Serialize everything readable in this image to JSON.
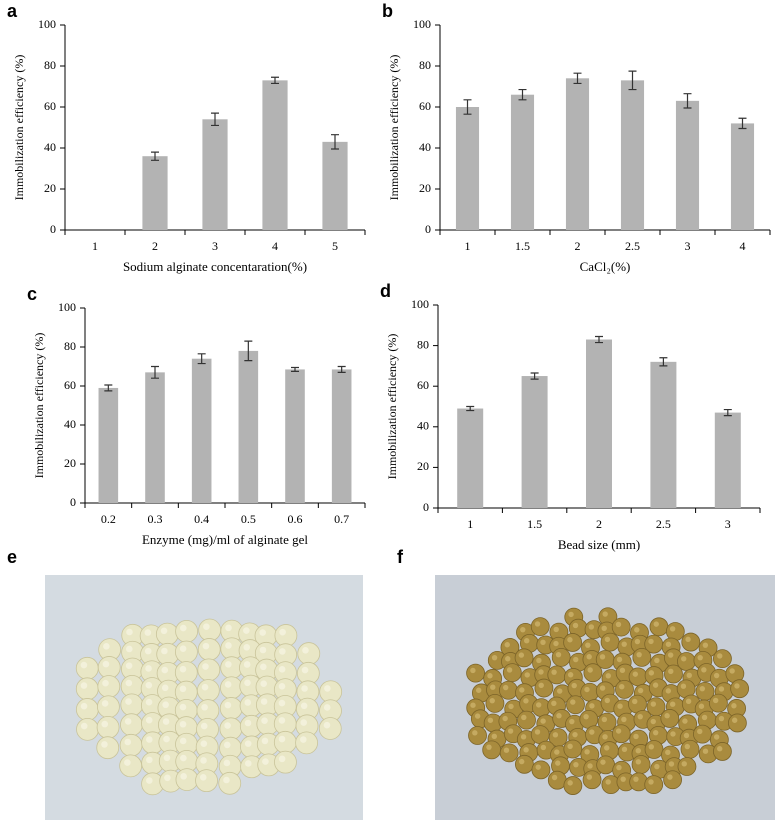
{
  "chart_data": [
    {
      "type": "bar",
      "label": "a",
      "xlabel": "Sodium alginate concentaration(%)",
      "ylabel": "Immobilization efficiency (%)",
      "categories": [
        "1",
        "2",
        "3",
        "4",
        "5"
      ],
      "values": [
        null,
        36,
        54,
        73,
        43
      ],
      "errors": [
        null,
        2,
        3,
        1.5,
        3.5
      ],
      "color": "#b3b3b3",
      "ylim": [
        0,
        100
      ],
      "yticks": [
        0,
        20,
        40,
        60,
        80,
        100
      ]
    },
    {
      "type": "bar",
      "label": "b",
      "xlabel": "CaCl₂(%)",
      "ylabel": "Immobilization efficiency (%)",
      "categories": [
        "1",
        "1.5",
        "2",
        "2.5",
        "3",
        "4"
      ],
      "values": [
        60,
        66,
        74,
        73,
        63,
        52
      ],
      "errors": [
        3.5,
        2.5,
        2.5,
        4.5,
        3.5,
        2.5
      ],
      "color": "#b3b3b3",
      "ylim": [
        0,
        100
      ],
      "yticks": [
        0,
        20,
        40,
        60,
        80,
        100
      ]
    },
    {
      "type": "bar",
      "label": "c",
      "xlabel": "Enzyme (mg)/ml of alginate gel",
      "ylabel": "Immobilization efficiency (%)",
      "categories": [
        "0.2",
        "0.3",
        "0.4",
        "0.5",
        "0.6",
        "0.7"
      ],
      "values": [
        59,
        67,
        74,
        78,
        68.5,
        68.5
      ],
      "errors": [
        1.5,
        3,
        2.5,
        5,
        1,
        1.5
      ],
      "color": "#b3b3b3",
      "ylim": [
        0,
        100
      ],
      "yticks": [
        0,
        20,
        40,
        60,
        80,
        100
      ]
    },
    {
      "type": "bar",
      "label": "d",
      "xlabel": "Bead size (mm)",
      "ylabel": "Immobilization efficiency (%)",
      "categories": [
        "1",
        "1.5",
        "2",
        "2.5",
        "3"
      ],
      "values": [
        49,
        65,
        83,
        72,
        47
      ],
      "errors": [
        1,
        1.5,
        1.5,
        2,
        1.5
      ],
      "color": "#b3b3b3",
      "ylim": [
        0,
        100
      ],
      "yticks": [
        0,
        20,
        40,
        60,
        80,
        100
      ]
    }
  ],
  "photos": [
    {
      "label": "e"
    },
    {
      "label": "f"
    }
  ]
}
